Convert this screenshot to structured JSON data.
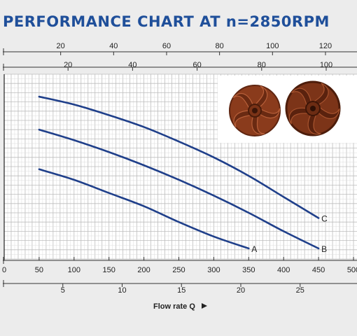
{
  "chart_data": {
    "type": "line",
    "title": "PERFORMANCE CHART AT n=2850RPM",
    "xlabel": "Flow rate Q",
    "x_axes": {
      "bottom_primary": {
        "ticks": [
          0,
          50,
          100,
          150,
          200,
          250,
          300,
          350,
          400,
          450,
          500
        ]
      },
      "bottom_secondary": {
        "ticks": [
          5,
          10,
          15,
          20,
          25
        ]
      },
      "top_primary": {
        "ticks": [
          20,
          40,
          60,
          80,
          100,
          120
        ]
      },
      "top_secondary": {
        "ticks": [
          20,
          40,
          60,
          80,
          100
        ]
      }
    },
    "xlim": [
      0,
      500
    ],
    "grid": true,
    "series": [
      {
        "name": "A",
        "color": "#1f3f8a",
        "x": [
          50,
          100,
          150,
          200,
          250,
          300,
          350
        ],
        "y": [
          68,
          60,
          50,
          40,
          28,
          17,
          8
        ]
      },
      {
        "name": "B",
        "color": "#1f3f8a",
        "x": [
          50,
          100,
          150,
          200,
          250,
          300,
          350,
          400,
          450
        ],
        "y": [
          98,
          90,
          81,
          71,
          60,
          48,
          35,
          21,
          8
        ]
      },
      {
        "name": "C",
        "color": "#1f3f8a",
        "x": [
          50,
          100,
          150,
          200,
          250,
          300,
          350,
          400,
          450
        ],
        "y": [
          123,
          117,
          109,
          100,
          89,
          77,
          63,
          47,
          31
        ]
      }
    ],
    "y_range_units": [
      0,
      140
    ]
  },
  "inset": {
    "images": [
      "impeller-open-vane",
      "impeller-closed-vane"
    ]
  }
}
